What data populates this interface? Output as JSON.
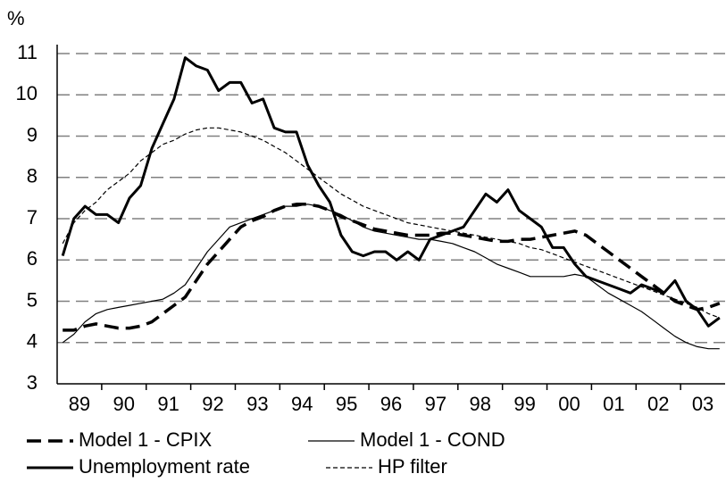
{
  "chart_data": {
    "type": "line",
    "y_label": "%",
    "categories": [
      null,
      "89",
      null,
      null,
      null,
      "90",
      null,
      null,
      null,
      "91",
      null,
      null,
      null,
      "92",
      null,
      null,
      null,
      "93",
      null,
      null,
      null,
      "94",
      null,
      null,
      null,
      "95",
      null,
      null,
      null,
      "96",
      null,
      null,
      null,
      "97",
      null,
      null,
      null,
      "98",
      null,
      null,
      null,
      "99",
      null,
      null,
      null,
      "00",
      null,
      null,
      null,
      "01",
      null,
      null,
      null,
      "02",
      null,
      null,
      null,
      "03",
      null,
      null
    ],
    "ylim": [
      3,
      11
    ],
    "yticks": [
      3,
      4,
      5,
      6,
      7,
      8,
      9,
      10,
      11
    ],
    "grid": true,
    "series": [
      {
        "name": "Model 1 - CPIX",
        "color": "#000000",
        "values": [
          4.3,
          4.3,
          4.4,
          4.45,
          4.4,
          4.35,
          4.35,
          4.4,
          4.5,
          4.7,
          4.9,
          5.1,
          5.5,
          5.9,
          6.2,
          6.5,
          6.8,
          6.95,
          7.05,
          7.2,
          7.3,
          7.35,
          7.35,
          7.3,
          7.2,
          7.05,
          6.95,
          6.85,
          6.75,
          6.7,
          6.65,
          6.6,
          6.6,
          6.6,
          6.65,
          6.65,
          6.6,
          6.55,
          6.5,
          6.45,
          6.45,
          6.5,
          6.5,
          6.55,
          6.6,
          6.65,
          6.7,
          6.6,
          6.4,
          6.2,
          6.0,
          5.8,
          5.6,
          5.4,
          5.2,
          5.0,
          4.9,
          4.8,
          4.85,
          4.95
        ]
      },
      {
        "name": "Model 1 - COND",
        "color": "#000000",
        "values": [
          4.0,
          4.2,
          4.5,
          4.7,
          4.8,
          4.85,
          4.9,
          4.95,
          5.0,
          5.05,
          5.2,
          5.4,
          5.8,
          6.2,
          6.5,
          6.8,
          6.9,
          7.0,
          7.1,
          7.2,
          7.3,
          7.3,
          7.35,
          7.3,
          7.2,
          7.1,
          6.95,
          6.8,
          6.7,
          6.65,
          6.6,
          6.55,
          6.5,
          6.5,
          6.45,
          6.4,
          6.3,
          6.2,
          6.05,
          5.9,
          5.8,
          5.7,
          5.6,
          5.6,
          5.6,
          5.6,
          5.65,
          5.6,
          5.4,
          5.2,
          5.05,
          4.9,
          4.75,
          4.55,
          4.35,
          4.15,
          4.0,
          3.9,
          3.85,
          3.85
        ]
      },
      {
        "name": "Unemployment rate",
        "color": "#000000",
        "values": [
          6.1,
          7.0,
          7.3,
          7.1,
          7.1,
          6.9,
          7.5,
          7.8,
          8.7,
          9.3,
          9.9,
          10.9,
          10.7,
          10.6,
          10.1,
          10.3,
          10.3,
          9.8,
          9.9,
          9.2,
          9.1,
          9.1,
          8.3,
          7.8,
          7.4,
          6.6,
          6.2,
          6.1,
          6.2,
          6.2,
          6.0,
          6.2,
          6.0,
          6.5,
          6.6,
          6.7,
          6.8,
          7.2,
          7.6,
          7.4,
          7.7,
          7.2,
          7.0,
          6.8,
          6.3,
          6.3,
          5.9,
          5.6,
          5.5,
          5.4,
          5.3,
          5.2,
          5.4,
          5.3,
          5.2,
          5.5,
          5.0,
          4.8,
          4.4,
          4.6
        ]
      },
      {
        "name": "HP filter",
        "color": "#000000",
        "values": [
          6.4,
          6.9,
          7.2,
          7.4,
          7.7,
          7.9,
          8.1,
          8.4,
          8.6,
          8.8,
          8.9,
          9.05,
          9.15,
          9.2,
          9.2,
          9.15,
          9.1,
          9.0,
          8.9,
          8.75,
          8.6,
          8.4,
          8.2,
          8.0,
          7.8,
          7.6,
          7.45,
          7.3,
          7.2,
          7.1,
          7.0,
          6.9,
          6.85,
          6.8,
          6.75,
          6.7,
          6.65,
          6.6,
          6.55,
          6.5,
          6.45,
          6.4,
          6.3,
          6.25,
          6.15,
          6.05,
          5.95,
          5.85,
          5.75,
          5.65,
          5.55,
          5.45,
          5.35,
          5.25,
          5.15,
          5.05,
          4.95,
          4.85,
          4.7,
          4.6
        ]
      }
    ]
  }
}
